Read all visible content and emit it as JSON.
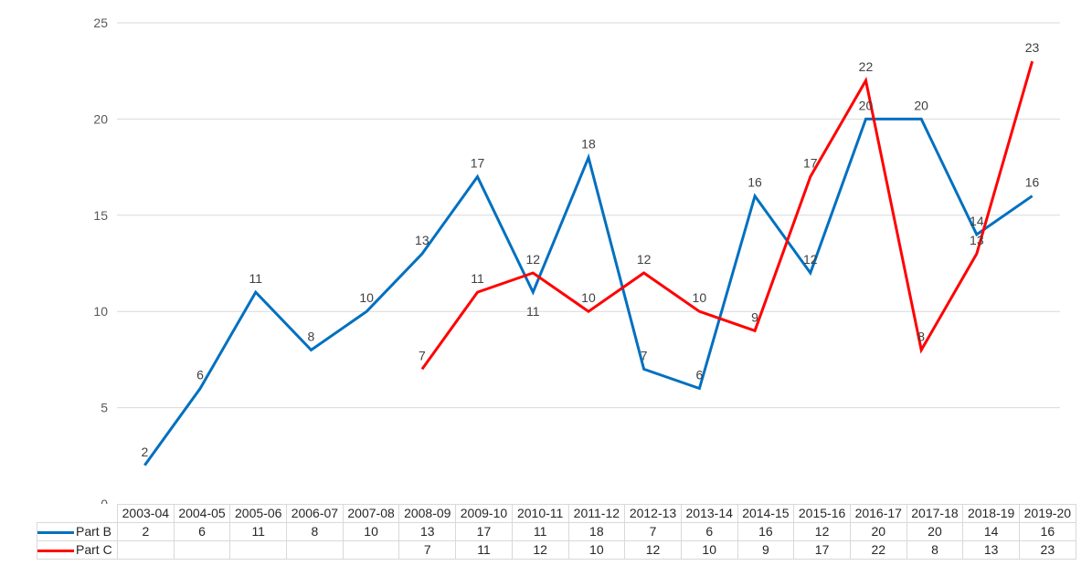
{
  "chart_data": {
    "type": "line",
    "title": "",
    "xlabel": "",
    "ylabel": "",
    "ylim": [
      0,
      25
    ],
    "yticks": [
      0,
      5,
      10,
      15,
      20,
      25
    ],
    "grid": true,
    "legend": "data-table",
    "categories": [
      "2003-04",
      "2004-05",
      "2005-06",
      "2006-07",
      "2007-08",
      "2008-09",
      "2009-10",
      "2010-11",
      "2011-12",
      "2012-13",
      "2013-14",
      "2014-15",
      "2015-16",
      "2016-17",
      "2017-18",
      "2018-19",
      "2019-20"
    ],
    "series": [
      {
        "name": "Part B",
        "color": "#0070c0",
        "values": [
          2,
          6,
          11,
          8,
          10,
          13,
          17,
          11,
          18,
          7,
          6,
          16,
          12,
          20,
          20,
          14,
          16
        ]
      },
      {
        "name": "Part C",
        "color": "#ff0000",
        "values": [
          null,
          null,
          null,
          null,
          null,
          7,
          11,
          12,
          10,
          12,
          10,
          9,
          17,
          22,
          8,
          13,
          23
        ]
      }
    ]
  }
}
